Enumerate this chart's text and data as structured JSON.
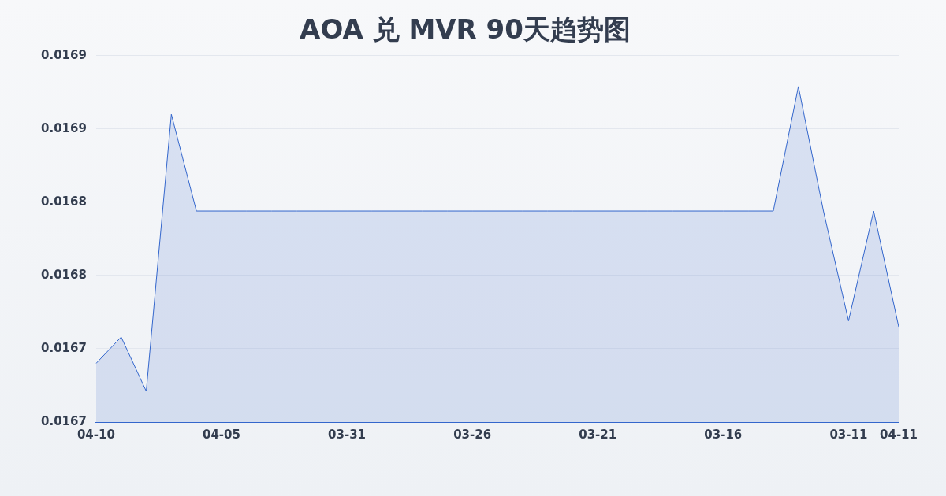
{
  "chart_data": {
    "type": "area",
    "title": "AOA 兑 MVR 90天趋势图",
    "categories": [
      "04-10",
      null,
      null,
      null,
      null,
      "04-05",
      null,
      null,
      null,
      null,
      "03-31",
      null,
      null,
      null,
      null,
      "03-26",
      null,
      null,
      null,
      null,
      "03-21",
      null,
      null,
      null,
      null,
      "03-16",
      null,
      null,
      null,
      null,
      "03-11",
      null,
      "04-11"
    ],
    "series": [
      {
        "color": "#3366cc",
        "values": [
          0.01669,
          0.016708,
          0.016671,
          0.01686,
          0.016794,
          0.016794,
          0.016794,
          0.016794,
          0.016794,
          0.016794,
          0.016794,
          0.016794,
          0.016794,
          0.016794,
          0.016794,
          0.016794,
          0.016794,
          0.016794,
          0.016794,
          0.016794,
          0.016794,
          0.016794,
          0.016794,
          0.016794,
          0.016794,
          0.016794,
          0.016794,
          0.016794,
          0.016879,
          0.016794,
          0.016719,
          0.016794,
          0.016715
        ]
      }
    ],
    "ylim": [
      0.01665,
      0.0169
    ],
    "yticks": [
      {
        "value": 0.01665,
        "label": "0.0167"
      },
      {
        "value": 0.0167,
        "label": "0.0167"
      },
      {
        "value": 0.01675,
        "label": "0.0168"
      },
      {
        "value": 0.0168,
        "label": "0.0168"
      },
      {
        "value": 0.01685,
        "label": "0.0169"
      },
      {
        "value": 0.0169,
        "label": "0.0169"
      }
    ],
    "grid": "y",
    "legend": false,
    "marker": "none",
    "line_style": "solid"
  }
}
